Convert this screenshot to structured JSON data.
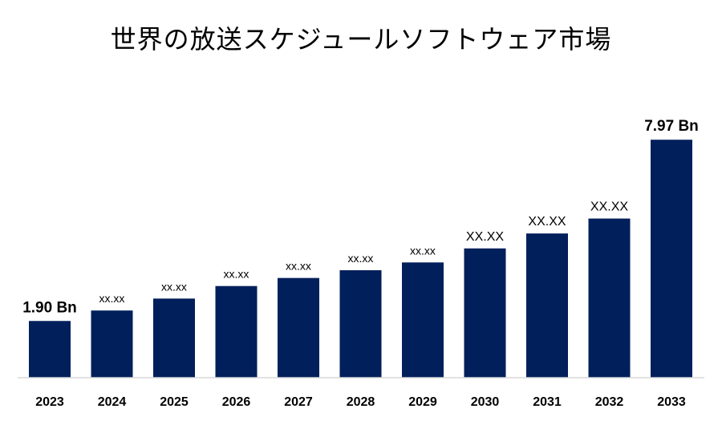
{
  "chart_data": {
    "type": "bar",
    "title": "世界の放送スケジュールソフトウェア市場",
    "categories": [
      "2023",
      "2024",
      "2025",
      "2026",
      "2027",
      "2028",
      "2029",
      "2030",
      "2031",
      "2032",
      "2033"
    ],
    "values": [
      1.9,
      2.25,
      2.65,
      3.07,
      3.34,
      3.6,
      3.86,
      4.33,
      4.83,
      5.33,
      7.97
    ],
    "value_labels": [
      "1.90 Bn",
      "xx.xx",
      "xx.xx",
      "xx.xx",
      "xx.xx",
      "xx.xx",
      "xx.xx",
      "XX.XX",
      "XX.XX",
      "XX.XX",
      "7.97 Bn"
    ],
    "bar_color": "#001f5b",
    "ylim": [
      0,
      9.4
    ],
    "xlabel": "",
    "ylabel": "",
    "grid": false,
    "legend": "none"
  }
}
